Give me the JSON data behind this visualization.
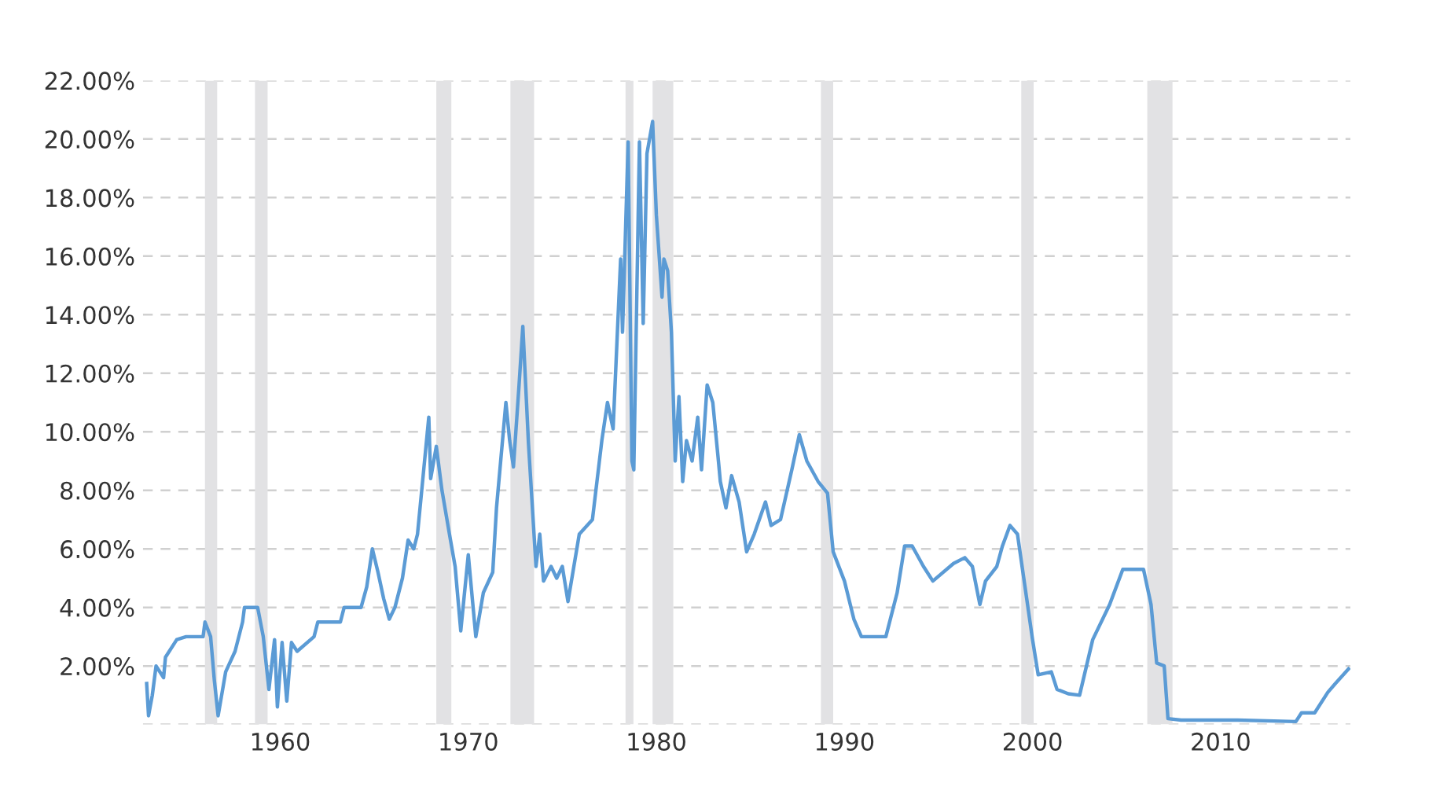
{
  "chart_data": {
    "type": "line",
    "xlim": [
      1952.7,
      2016.9
    ],
    "xticks": [
      1960,
      1970,
      1980,
      1990,
      2000,
      2010
    ],
    "ylim": [
      0,
      22
    ],
    "yticks": [
      {
        "value": 0,
        "label": null
      },
      {
        "value": 2,
        "label": "2.00%"
      },
      {
        "value": 4,
        "label": "4.00%"
      },
      {
        "value": 6,
        "label": "6.00%"
      },
      {
        "value": 8,
        "label": "8.00%"
      },
      {
        "value": 10,
        "label": "10.00%"
      },
      {
        "value": 12,
        "label": "12.00%"
      },
      {
        "value": 14,
        "label": "14.00%"
      },
      {
        "value": 16,
        "label": "16.00%"
      },
      {
        "value": 18,
        "label": "18.00%"
      },
      {
        "value": 20,
        "label": "20.00%"
      },
      {
        "value": 22,
        "label": "22.00%"
      }
    ],
    "grid": "y",
    "line_style": "solid",
    "marker": "none",
    "bands": [
      {
        "axis": "x",
        "from": 1956.0,
        "to": 1956.65,
        "color": "#e2e2e4"
      },
      {
        "axis": "x",
        "from": 1958.66,
        "to": 1959.33,
        "color": "#e2e2e4"
      },
      {
        "axis": "x",
        "from": 1968.3,
        "to": 1969.1,
        "color": "#e2e2e4"
      },
      {
        "axis": "x",
        "from": 1972.24,
        "to": 1973.5,
        "color": "#e2e2e4"
      },
      {
        "axis": "x",
        "from": 1978.36,
        "to": 1978.78,
        "color": "#e2e2e4"
      },
      {
        "axis": "x",
        "from": 1979.8,
        "to": 1980.9,
        "color": "#e2e2e4"
      },
      {
        "axis": "x",
        "from": 1988.75,
        "to": 1989.4,
        "color": "#e2e2e4"
      },
      {
        "axis": "x",
        "from": 1999.4,
        "to": 2000.06,
        "color": "#e2e2e4"
      },
      {
        "axis": "x",
        "from": 2006.1,
        "to": 2007.44,
        "color": "#e2e2e4"
      }
    ],
    "series": [
      {
        "color": "#5b9bd5",
        "x": [
          1952.9,
          1953.0,
          1953.2,
          1953.4,
          1953.8,
          1953.9,
          1954.5,
          1955.0,
          1955.9,
          1956.0,
          1956.3,
          1956.5,
          1956.7,
          1957.1,
          1957.6,
          1958.0,
          1958.1,
          1958.8,
          1959.1,
          1959.4,
          1959.7,
          1959.85,
          1960.1,
          1960.35,
          1960.6,
          1960.9,
          1961.8,
          1962.0,
          1963.2,
          1963.4,
          1964.3,
          1964.6,
          1964.9,
          1965.2,
          1965.5,
          1965.8,
          1966.1,
          1966.5,
          1966.8,
          1967.1,
          1967.3,
          1967.6,
          1967.9,
          1968.0,
          1968.3,
          1968.6,
          1969.0,
          1969.3,
          1969.6,
          1970.0,
          1970.4,
          1970.8,
          1971.3,
          1971.5,
          1972.0,
          1972.2,
          1972.4,
          1972.7,
          1972.9,
          1973.2,
          1973.6,
          1973.8,
          1974.0,
          1974.4,
          1974.7,
          1975.0,
          1975.3,
          1975.9,
          1976.6,
          1977.1,
          1977.4,
          1977.7,
          1978.1,
          1978.2,
          1978.5,
          1978.7,
          1978.8,
          1979.1,
          1979.3,
          1979.5,
          1979.8,
          1980.0,
          1980.3,
          1980.4,
          1980.6,
          1980.8,
          1981.0,
          1981.2,
          1981.4,
          1981.6,
          1981.9,
          1982.2,
          1982.4,
          1982.7,
          1983.0,
          1983.3,
          1983.4,
          1983.7,
          1984.0,
          1984.4,
          1984.8,
          1985.2,
          1985.8,
          1986.1,
          1986.6,
          1987.2,
          1987.6,
          1988.0,
          1988.6,
          1989.1,
          1989.4,
          1990.0,
          1990.5,
          1990.9,
          1991.6,
          1992.2,
          1992.8,
          1993.2,
          1993.6,
          1994.2,
          1994.7,
          1995.8,
          1996.4,
          1996.8,
          1997.2,
          1997.5,
          1998.1,
          1998.4,
          1998.8,
          1999.2,
          1999.6,
          2000.0,
          2000.3,
          2001.0,
          2001.3,
          2001.9,
          2002.5,
          2003.2,
          2004.1,
          2004.8,
          2005.9,
          2006.3,
          2006.6,
          2007.0,
          2007.2,
          2007.9,
          2009.3,
          2010.9,
          2014.0,
          2014.3,
          2015.0,
          2015.7,
          2016.1,
          2016.8
        ],
        "values": [
          1.4,
          0.3,
          1.0,
          2.0,
          1.6,
          2.3,
          2.9,
          3.0,
          3.0,
          3.5,
          3.0,
          1.5,
          0.3,
          1.8,
          2.5,
          3.5,
          4.0,
          4.0,
          3.0,
          1.2,
          2.9,
          0.6,
          2.8,
          0.8,
          2.8,
          2.5,
          3.0,
          3.5,
          3.5,
          4.0,
          4.0,
          4.7,
          6.0,
          5.2,
          4.3,
          3.6,
          4.0,
          5.0,
          6.3,
          6.0,
          6.5,
          8.5,
          10.5,
          8.4,
          9.5,
          8.0,
          6.5,
          5.4,
          3.2,
          5.8,
          3.0,
          4.5,
          5.2,
          7.4,
          11.0,
          9.7,
          8.8,
          11.6,
          13.6,
          9.6,
          5.4,
          6.5,
          4.9,
          5.4,
          5.0,
          5.4,
          4.2,
          6.5,
          7.0,
          9.7,
          11.0,
          10.1,
          15.9,
          13.4,
          19.9,
          9.0,
          8.7,
          19.9,
          13.7,
          19.5,
          20.6,
          17.4,
          14.6,
          15.9,
          15.5,
          13.4,
          9.0,
          11.2,
          8.3,
          9.7,
          9.0,
          10.5,
          8.7,
          11.6,
          11.0,
          9.0,
          8.3,
          7.4,
          8.5,
          7.6,
          5.9,
          6.5,
          7.6,
          6.8,
          7.0,
          8.7,
          9.9,
          9.0,
          8.3,
          7.9,
          5.9,
          4.9,
          3.6,
          3.0,
          3.0,
          3.0,
          4.5,
          6.1,
          6.1,
          5.4,
          4.9,
          5.5,
          5.7,
          5.4,
          4.1,
          4.9,
          5.4,
          6.1,
          6.8,
          6.5,
          4.7,
          2.9,
          1.7,
          1.8,
          1.2,
          1.05,
          1.0,
          2.9,
          4.1,
          5.3,
          5.3,
          4.1,
          2.1,
          2.0,
          0.2,
          0.15,
          0.15,
          0.15,
          0.1,
          0.4,
          0.4,
          1.1,
          1.4,
          1.9
        ]
      }
    ]
  }
}
